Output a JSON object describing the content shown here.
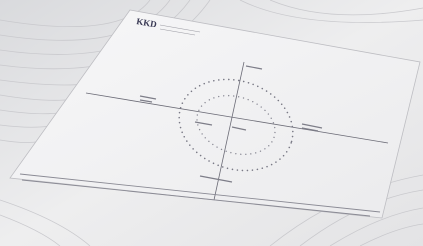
{
  "document": {
    "logo": "KKD"
  }
}
